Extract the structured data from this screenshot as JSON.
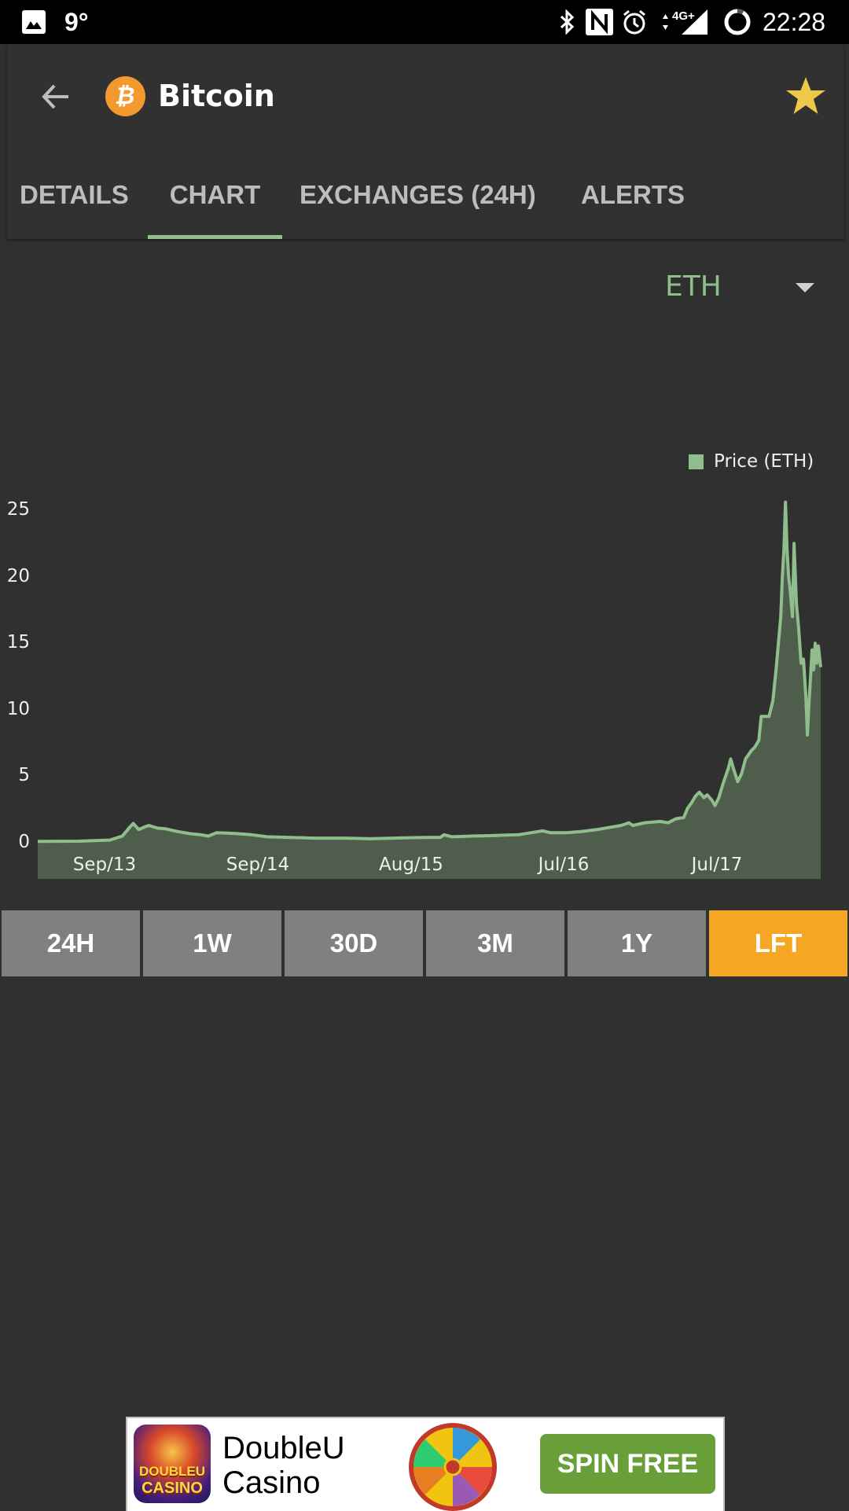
{
  "status_bar": {
    "temperature": "9°",
    "network": "4G+",
    "time": "22:28",
    "icons": [
      "image-icon",
      "bluetooth-icon",
      "nfc-icon",
      "alarm-icon",
      "data-arrows-icon",
      "signal-icon",
      "battery-ring-icon"
    ]
  },
  "header": {
    "title": "Bitcoin",
    "coin_symbol": "₿",
    "coin_color": "#f39a2e",
    "favorite_color": "#edc84a",
    "tabs": [
      {
        "label": "DETAILS",
        "active": false
      },
      {
        "label": "CHART",
        "active": true
      },
      {
        "label": "EXCHANGES (24H)",
        "active": false
      },
      {
        "label": "ALERTS",
        "active": false
      }
    ],
    "accent_color": "#8fbe8c"
  },
  "currency_select": {
    "value": "ETH"
  },
  "range_buttons": [
    {
      "label": "24H",
      "active": false
    },
    {
      "label": "1W",
      "active": false
    },
    {
      "label": "30D",
      "active": false
    },
    {
      "label": "3M",
      "active": false
    },
    {
      "label": "1Y",
      "active": false
    },
    {
      "label": "LFT",
      "active": true
    }
  ],
  "colors": {
    "range_inactive": "#808080",
    "range_active": "#f5a623",
    "line": "#8fbe8c",
    "fill": "#4f5e4c"
  },
  "chart_data": {
    "type": "area",
    "title": "",
    "legend": [
      "Price (ETH)"
    ],
    "legend_position": "top-right",
    "xlabel": "",
    "ylabel": "",
    "ylim": [
      0,
      25
    ],
    "yticks": [
      0,
      5,
      10,
      15,
      20,
      25
    ],
    "grid": false,
    "xtick_labels": [
      {
        "label": "Sep/13",
        "pos": 0.0853
      },
      {
        "label": "Sep/14",
        "pos": 0.2811
      },
      {
        "label": "Aug/15",
        "pos": 0.4769
      },
      {
        "label": "Jul/16",
        "pos": 0.6717
      },
      {
        "label": "Jul/17",
        "pos": 0.8675
      }
    ],
    "series": [
      {
        "name": "Price (ETH)",
        "points": [
          [
            0.0,
            0.1
          ],
          [
            0.052,
            0.12
          ],
          [
            0.092,
            0.2
          ],
          [
            0.108,
            0.5
          ],
          [
            0.118,
            1.2
          ],
          [
            0.122,
            1.45
          ],
          [
            0.129,
            1.0
          ],
          [
            0.137,
            1.2
          ],
          [
            0.142,
            1.3
          ],
          [
            0.153,
            1.1
          ],
          [
            0.163,
            1.05
          ],
          [
            0.178,
            0.85
          ],
          [
            0.193,
            0.7
          ],
          [
            0.208,
            0.6
          ],
          [
            0.218,
            0.5
          ],
          [
            0.228,
            0.75
          ],
          [
            0.243,
            0.72
          ],
          [
            0.253,
            0.7
          ],
          [
            0.273,
            0.6
          ],
          [
            0.293,
            0.45
          ],
          [
            0.323,
            0.4
          ],
          [
            0.353,
            0.35
          ],
          [
            0.393,
            0.35
          ],
          [
            0.424,
            0.3
          ],
          [
            0.454,
            0.35
          ],
          [
            0.494,
            0.4
          ],
          [
            0.514,
            0.4
          ],
          [
            0.519,
            0.6
          ],
          [
            0.529,
            0.45
          ],
          [
            0.554,
            0.5
          ],
          [
            0.584,
            0.55
          ],
          [
            0.614,
            0.6
          ],
          [
            0.645,
            0.9
          ],
          [
            0.655,
            0.75
          ],
          [
            0.675,
            0.75
          ],
          [
            0.695,
            0.85
          ],
          [
            0.715,
            1.0
          ],
          [
            0.745,
            1.3
          ],
          [
            0.755,
            1.5
          ],
          [
            0.76,
            1.3
          ],
          [
            0.775,
            1.5
          ],
          [
            0.795,
            1.6
          ],
          [
            0.805,
            1.5
          ],
          [
            0.815,
            1.8
          ],
          [
            0.825,
            1.9
          ],
          [
            0.83,
            2.6
          ],
          [
            0.835,
            3.0
          ],
          [
            0.84,
            3.5
          ],
          [
            0.845,
            3.8
          ],
          [
            0.851,
            3.4
          ],
          [
            0.855,
            3.6
          ],
          [
            0.861,
            3.2
          ],
          [
            0.865,
            2.8
          ],
          [
            0.87,
            3.4
          ],
          [
            0.875,
            4.4
          ],
          [
            0.882,
            5.6
          ],
          [
            0.885,
            6.3
          ],
          [
            0.889,
            5.5
          ],
          [
            0.894,
            4.6
          ],
          [
            0.899,
            5.2
          ],
          [
            0.904,
            6.3
          ],
          [
            0.911,
            6.9
          ],
          [
            0.916,
            7.2
          ],
          [
            0.921,
            7.7
          ],
          [
            0.924,
            9.5
          ],
          [
            0.934,
            9.5
          ],
          [
            0.939,
            10.7
          ],
          [
            0.943,
            13.0
          ],
          [
            0.946,
            15.0
          ],
          [
            0.949,
            17.0
          ],
          [
            0.951,
            20.0
          ],
          [
            0.953,
            22.0
          ],
          [
            0.955,
            25.6
          ],
          [
            0.957,
            22.0
          ],
          [
            0.959,
            20.0
          ],
          [
            0.961,
            19.0
          ],
          [
            0.964,
            17.0
          ],
          [
            0.966,
            22.5
          ],
          [
            0.969,
            18.0
          ],
          [
            0.972,
            16.0
          ],
          [
            0.975,
            13.5
          ],
          [
            0.978,
            13.8
          ],
          [
            0.981,
            11.0
          ],
          [
            0.983,
            8.1
          ],
          [
            0.985,
            10.5
          ],
          [
            0.987,
            12.5
          ],
          [
            0.989,
            14.5
          ],
          [
            0.991,
            13.0
          ],
          [
            0.993,
            15.0
          ],
          [
            0.995,
            13.5
          ],
          [
            0.997,
            14.8
          ],
          [
            1.0,
            13.2
          ]
        ]
      }
    ]
  },
  "ad": {
    "app_icon_text_1": "DOUBLEU",
    "app_icon_text_2": "CASINO",
    "name_line_1": "DoubleU",
    "name_line_2": "Casino",
    "cta": "SPIN FREE"
  }
}
